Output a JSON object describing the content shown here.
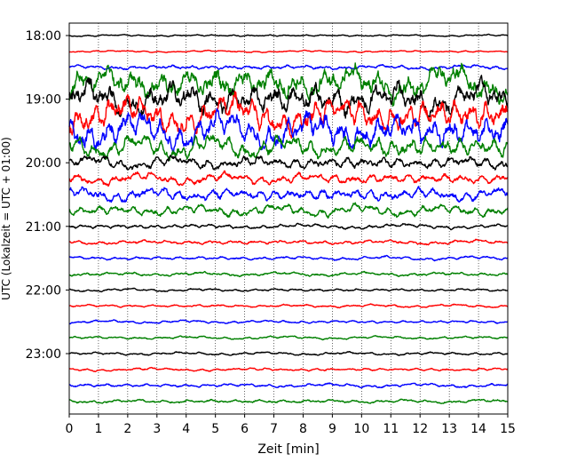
{
  "chart_data": {
    "type": "line",
    "title": "",
    "xlabel": "Zeit  [min]",
    "ylabel": "UTC (Lokalzeit = UTC + 01:00)",
    "xlim": [
      0,
      15
    ],
    "x_ticks": [
      "0",
      "1",
      "2",
      "3",
      "4",
      "5",
      "6",
      "7",
      "8",
      "9",
      "10",
      "11",
      "12",
      "13",
      "14",
      "15"
    ],
    "y_ticks": [
      "18:00",
      "19:00",
      "20:00",
      "21:00",
      "22:00",
      "23:00"
    ],
    "y_tick_hours": [
      18,
      19,
      20,
      21,
      22,
      23
    ],
    "traces_start_hour": 18,
    "trace_interval_min": 15,
    "trace_colors": [
      "#000000",
      "#ff0000",
      "#0000ff",
      "#008000"
    ],
    "grid_x": "dotted",
    "traces": [
      {
        "start": "18:00",
        "color": "#000000",
        "amplitude": 0.05
      },
      {
        "start": "18:15",
        "color": "#ff0000",
        "amplitude": 0.05
      },
      {
        "start": "18:30",
        "color": "#0000ff",
        "amplitude": 0.12
      },
      {
        "start": "18:45",
        "color": "#008000",
        "amplitude": 0.9
      },
      {
        "start": "19:00",
        "color": "#000000",
        "amplitude": 0.9
      },
      {
        "start": "19:15",
        "color": "#ff0000",
        "amplitude": 0.9
      },
      {
        "start": "19:30",
        "color": "#0000ff",
        "amplitude": 0.9
      },
      {
        "start": "19:45",
        "color": "#008000",
        "amplitude": 0.6
      },
      {
        "start": "20:00",
        "color": "#000000",
        "amplitude": 0.35
      },
      {
        "start": "20:15",
        "color": "#ff0000",
        "amplitude": 0.3
      },
      {
        "start": "20:30",
        "color": "#0000ff",
        "amplitude": 0.35
      },
      {
        "start": "20:45",
        "color": "#008000",
        "amplitude": 0.3
      },
      {
        "start": "21:00",
        "color": "#000000",
        "amplitude": 0.12
      },
      {
        "start": "21:15",
        "color": "#ff0000",
        "amplitude": 0.12
      },
      {
        "start": "21:30",
        "color": "#0000ff",
        "amplitude": 0.1
      },
      {
        "start": "21:45",
        "color": "#008000",
        "amplitude": 0.1
      },
      {
        "start": "22:00",
        "color": "#000000",
        "amplitude": 0.08
      },
      {
        "start": "22:15",
        "color": "#ff0000",
        "amplitude": 0.08
      },
      {
        "start": "22:30",
        "color": "#0000ff",
        "amplitude": 0.08
      },
      {
        "start": "22:45",
        "color": "#008000",
        "amplitude": 0.08
      },
      {
        "start": "23:00",
        "color": "#000000",
        "amplitude": 0.08
      },
      {
        "start": "23:15",
        "color": "#ff0000",
        "amplitude": 0.08
      },
      {
        "start": "23:30",
        "color": "#0000ff",
        "amplitude": 0.1
      },
      {
        "start": "23:45",
        "color": "#008000",
        "amplitude": 0.1
      }
    ]
  }
}
